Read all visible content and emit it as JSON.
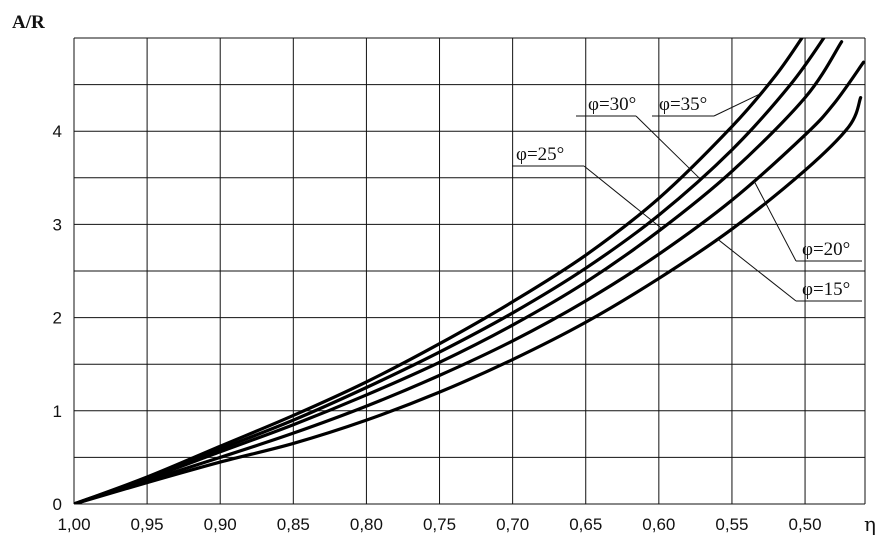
{
  "chart_data": {
    "type": "line",
    "title": "",
    "ylabel": "A/R",
    "xlabel": "η",
    "x_ticks": [
      {
        "value": 1.0,
        "label": "1,00"
      },
      {
        "value": 0.95,
        "label": "0,95"
      },
      {
        "value": 0.9,
        "label": "0,90"
      },
      {
        "value": 0.85,
        "label": "0,85"
      },
      {
        "value": 0.8,
        "label": "0,80"
      },
      {
        "value": 0.75,
        "label": "0,75"
      },
      {
        "value": 0.7,
        "label": "0,70"
      },
      {
        "value": 0.65,
        "label": "0,65"
      },
      {
        "value": 0.6,
        "label": "0,60"
      },
      {
        "value": 0.55,
        "label": "0,55"
      },
      {
        "value": 0.5,
        "label": "0,50"
      }
    ],
    "y_ticks": [
      {
        "value": 0,
        "label": "0"
      },
      {
        "value": 1,
        "label": "1"
      },
      {
        "value": 2,
        "label": "2"
      },
      {
        "value": 3,
        "label": "3"
      },
      {
        "value": 4,
        "label": "4"
      }
    ],
    "xlim": [
      1.0,
      0.459
    ],
    "ylim": [
      0,
      5.0
    ],
    "grid": true,
    "series": [
      {
        "name": "φ=15°",
        "points": [
          [
            1.0,
            0
          ],
          [
            0.95,
            0.23
          ],
          [
            0.9,
            0.45
          ],
          [
            0.85,
            0.65
          ],
          [
            0.8,
            0.9
          ],
          [
            0.75,
            1.2
          ],
          [
            0.7,
            1.55
          ],
          [
            0.65,
            1.95
          ],
          [
            0.6,
            2.42
          ],
          [
            0.55,
            2.95
          ],
          [
            0.5,
            3.58
          ],
          [
            0.47,
            4.05
          ],
          [
            0.462,
            4.36
          ]
        ]
      },
      {
        "name": "φ=20°",
        "points": [
          [
            1.0,
            0
          ],
          [
            0.95,
            0.25
          ],
          [
            0.9,
            0.5
          ],
          [
            0.85,
            0.76
          ],
          [
            0.8,
            1.05
          ],
          [
            0.75,
            1.38
          ],
          [
            0.7,
            1.75
          ],
          [
            0.65,
            2.18
          ],
          [
            0.6,
            2.68
          ],
          [
            0.55,
            3.26
          ],
          [
            0.5,
            3.96
          ],
          [
            0.48,
            4.3
          ],
          [
            0.46,
            4.74
          ]
        ]
      },
      {
        "name": "φ=25°",
        "points": [
          [
            1.0,
            0
          ],
          [
            0.95,
            0.27
          ],
          [
            0.9,
            0.56
          ],
          [
            0.85,
            0.85
          ],
          [
            0.8,
            1.17
          ],
          [
            0.75,
            1.52
          ],
          [
            0.7,
            1.92
          ],
          [
            0.65,
            2.38
          ],
          [
            0.6,
            2.93
          ],
          [
            0.55,
            3.57
          ],
          [
            0.5,
            4.36
          ],
          [
            0.475,
            4.96
          ]
        ]
      },
      {
        "name": "φ=30°",
        "points": [
          [
            1.0,
            0
          ],
          [
            0.95,
            0.28
          ],
          [
            0.9,
            0.59
          ],
          [
            0.85,
            0.9
          ],
          [
            0.8,
            1.25
          ],
          [
            0.75,
            1.63
          ],
          [
            0.7,
            2.05
          ],
          [
            0.65,
            2.53
          ],
          [
            0.6,
            3.1
          ],
          [
            0.55,
            3.8
          ],
          [
            0.51,
            4.5
          ],
          [
            0.485,
            5.05
          ]
        ]
      },
      {
        "name": "φ=35°",
        "points": [
          [
            1.0,
            0
          ],
          [
            0.95,
            0.29
          ],
          [
            0.9,
            0.62
          ],
          [
            0.85,
            0.95
          ],
          [
            0.8,
            1.31
          ],
          [
            0.75,
            1.72
          ],
          [
            0.7,
            2.17
          ],
          [
            0.65,
            2.67
          ],
          [
            0.6,
            3.28
          ],
          [
            0.55,
            4.05
          ],
          [
            0.52,
            4.6
          ],
          [
            0.5,
            5.05
          ]
        ]
      }
    ],
    "annotations": [
      {
        "text": "φ=30°",
        "series": "φ=30°"
      },
      {
        "text": "φ=35°",
        "series": "φ=35°"
      },
      {
        "text": "φ=25°",
        "series": "φ=25°"
      },
      {
        "text": "φ=20°",
        "series": "φ=20°"
      },
      {
        "text": "φ=15°",
        "series": "φ=15°"
      }
    ]
  }
}
